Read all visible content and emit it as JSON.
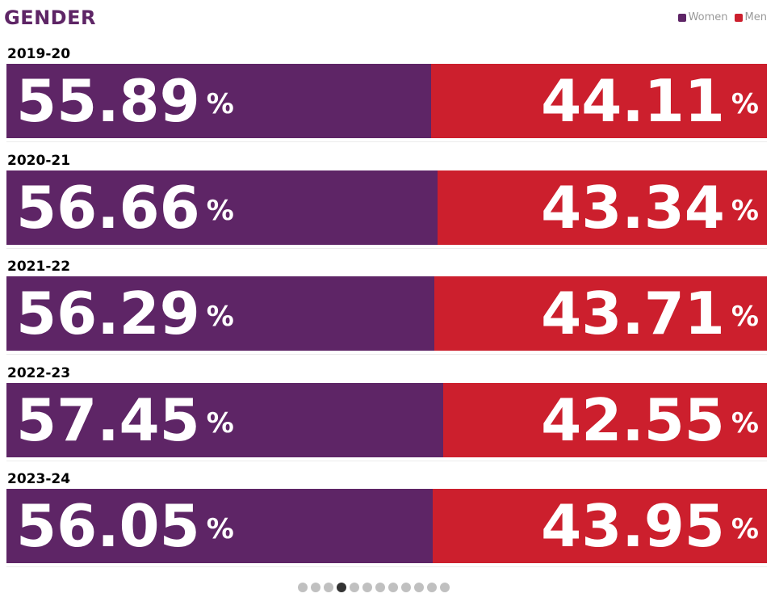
{
  "chart_data": {
    "type": "bar",
    "stacked": true,
    "orientation": "horizontal",
    "title": "GENDER",
    "categories": [
      "2019-20",
      "2020-21",
      "2021-22",
      "2022-23",
      "2023-24"
    ],
    "series": [
      {
        "name": "Women",
        "values": [
          55.89,
          56.66,
          56.29,
          57.45,
          56.05
        ]
      },
      {
        "name": "Men",
        "values": [
          44.11,
          43.34,
          43.71,
          42.55,
          43.95
        ]
      }
    ],
    "labels": {
      "women": [
        "55.89",
        "56.66",
        "56.29",
        "57.45",
        "56.05"
      ],
      "men": [
        "44.11",
        "43.34",
        "43.71",
        "42.55",
        "43.95"
      ]
    },
    "unit": "%",
    "xlim": [
      0,
      100
    ],
    "legend_position": "top-right",
    "colors": {
      "women": "#5e2566",
      "men": "#cc1f2d",
      "title": "#5e2566"
    }
  },
  "pager": {
    "count": 12,
    "active": 3
  }
}
